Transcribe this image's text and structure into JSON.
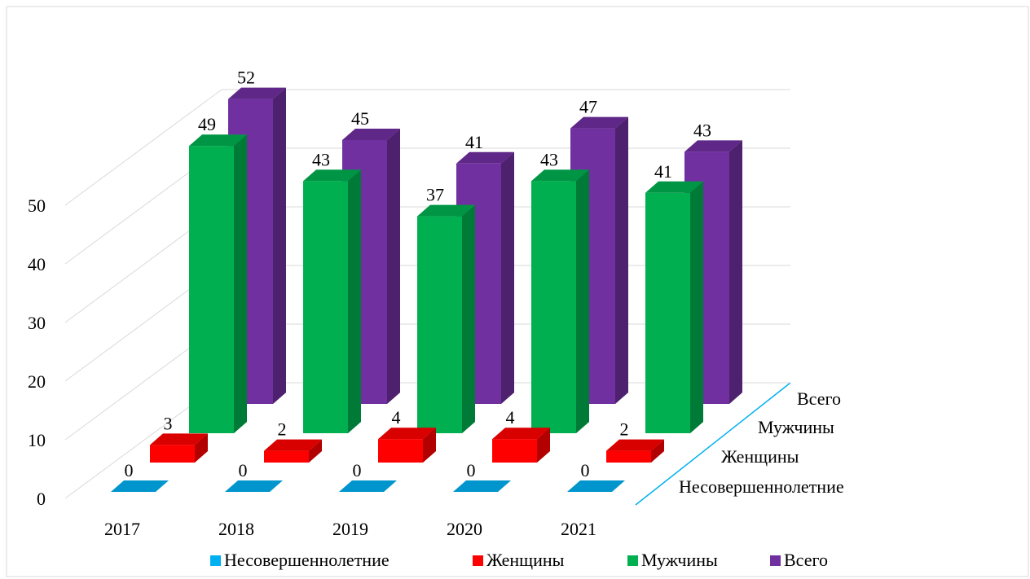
{
  "chart_data": {
    "type": "bar3d",
    "categories": [
      "2017",
      "2018",
      "2019",
      "2020",
      "2021"
    ],
    "series": [
      {
        "name": "Несовершеннолетние",
        "color": "#00b0f0",
        "values": [
          0,
          0,
          0,
          0,
          0
        ]
      },
      {
        "name": "Женщины",
        "color": "#ff0000",
        "values": [
          3,
          2,
          4,
          4,
          2
        ]
      },
      {
        "name": "Мужчины",
        "color": "#00b050",
        "values": [
          49,
          43,
          37,
          43,
          41
        ]
      },
      {
        "name": "Всего",
        "color": "#7030a0",
        "values": [
          52,
          45,
          41,
          47,
          43
        ]
      }
    ],
    "ylim": [
      0,
      50
    ],
    "yticks": [
      0,
      10,
      20,
      30,
      40,
      50
    ],
    "grid": true,
    "legend": "bottom"
  }
}
